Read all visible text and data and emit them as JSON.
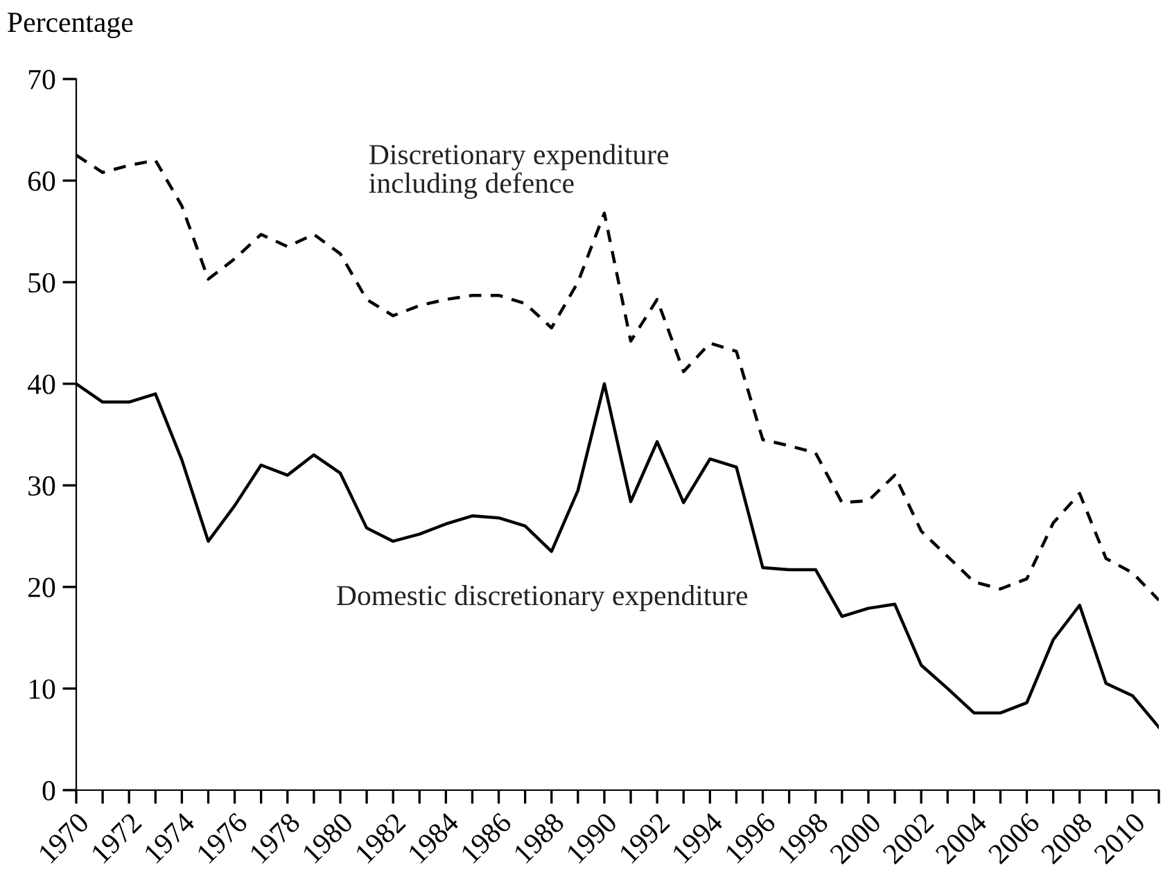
{
  "chart_data": {
    "type": "line",
    "ylabel": "Percentage",
    "x": [
      1970,
      1971,
      1972,
      1973,
      1974,
      1975,
      1976,
      1977,
      1978,
      1979,
      1980,
      1981,
      1982,
      1983,
      1984,
      1985,
      1986,
      1987,
      1988,
      1989,
      1990,
      1991,
      1992,
      1993,
      1994,
      1995,
      1996,
      1997,
      1998,
      1999,
      2000,
      2001,
      2002,
      2003,
      2004,
      2005,
      2006,
      2007,
      2008,
      2009,
      2010,
      2011
    ],
    "series": [
      {
        "name": "Discretionary expenditure\nincluding defence",
        "color": "#000000",
        "line_style": "dashed",
        "values": [
          62.5,
          60.8,
          61.5,
          62,
          57.5,
          50.3,
          52.3,
          54.7,
          53.5,
          54.7,
          52.8,
          48.3,
          46.7,
          47.7,
          48.3,
          48.7,
          48.7,
          47.9,
          45.5,
          50,
          56.8,
          44.2,
          48.3,
          41.2,
          44,
          43.2,
          34.5,
          33.9,
          33.2,
          28.3,
          28.5,
          31,
          25.5,
          23,
          20.5,
          19.8,
          20.8,
          26.3,
          29.2,
          22.8,
          21.4,
          18.7
        ]
      },
      {
        "name": "Domestic discretionary expenditure",
        "color": "#000000",
        "line_style": "solid",
        "values": [
          40,
          38.2,
          38.2,
          39,
          32.5,
          24.5,
          28,
          32,
          31,
          33,
          31.2,
          25.8,
          24.5,
          25.2,
          26.2,
          27,
          26.8,
          26,
          23.5,
          29.5,
          40,
          28.4,
          34.3,
          28.3,
          32.6,
          31.8,
          21.9,
          21.7,
          21.7,
          17.1,
          17.9,
          18.3,
          12.3,
          10,
          7.6,
          7.6,
          8.6,
          14.8,
          18.2,
          10.5,
          9.3,
          6.2
        ]
      }
    ],
    "xlim": [
      1970,
      2011
    ],
    "ylim": [
      0,
      70
    ],
    "yticks": [
      0,
      10,
      20,
      30,
      40,
      50,
      60,
      70
    ],
    "xticks": [
      1970,
      {
        "value": 1971,
        "label": null
      },
      1972,
      {
        "value": 1973,
        "label": null
      },
      1974,
      {
        "value": 1975,
        "label": null
      },
      1976,
      {
        "value": 1977,
        "label": null
      },
      1978,
      {
        "value": 1979,
        "label": null
      },
      1980,
      {
        "value": 1981,
        "label": null
      },
      1982,
      {
        "value": 1983,
        "label": null
      },
      1984,
      {
        "value": 1985,
        "label": null
      },
      1986,
      {
        "value": 1987,
        "label": null
      },
      1988,
      {
        "value": 1989,
        "label": null
      },
      1990,
      {
        "value": 1991,
        "label": null
      },
      1992,
      {
        "value": 1993,
        "label": null
      },
      1994,
      {
        "value": 1995,
        "label": null
      },
      1996,
      {
        "value": 1997,
        "label": null
      },
      1998,
      {
        "value": 1999,
        "label": null
      },
      2000,
      {
        "value": 2001,
        "label": null
      },
      2002,
      {
        "value": 2003,
        "label": null
      },
      2004,
      {
        "value": 2005,
        "label": null
      },
      2006,
      {
        "value": 2007,
        "label": null
      },
      2008,
      {
        "value": 2009,
        "label": null
      },
      2010,
      {
        "value": 2011,
        "label": null
      }
    ],
    "grid": false,
    "legend": false
  }
}
